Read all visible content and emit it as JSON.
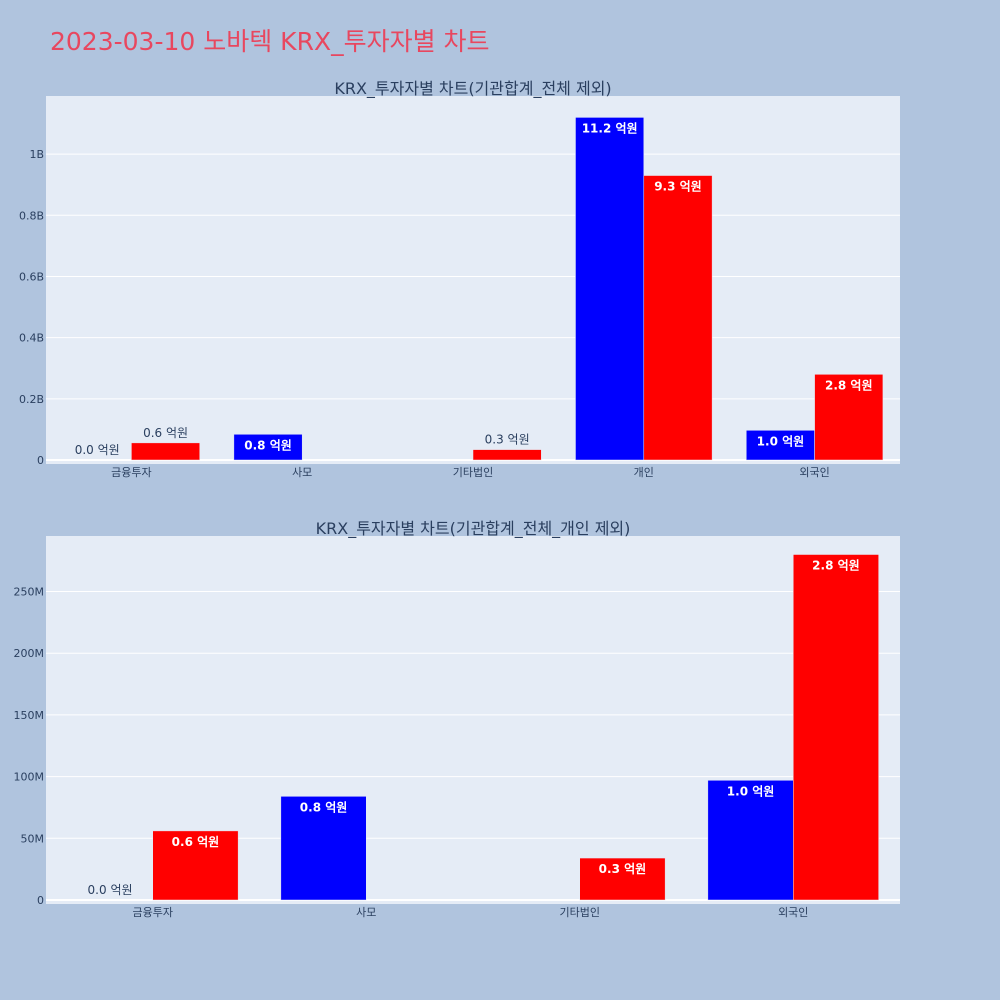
{
  "page": {
    "title": "2023-03-10 노바텍 KRX_투자자별 차트"
  },
  "chart_data": [
    {
      "type": "bar",
      "title": "KRX_투자자별 차트(기관합계_전체 제외)",
      "categories": [
        "금융투자",
        "사모",
        "기타법인",
        "개인",
        "외국인"
      ],
      "ylim": [
        0,
        1190000000
      ],
      "yticks": [
        0,
        200000000,
        400000000,
        600000000,
        800000000,
        1000000000
      ],
      "ytick_labels": [
        "0",
        "0.2B",
        "0.4B",
        "0.6B",
        "0.8B",
        "1B"
      ],
      "grid": true,
      "series": [
        {
          "color": "#0000ff",
          "values": [
            0,
            84000000,
            null,
            1120000000,
            97000000
          ],
          "labels": [
            "0.0 억원",
            "0.8 억원",
            "",
            "11.2 억원",
            "1.0 억원"
          ]
        },
        {
          "color": "#ff0000",
          "values": [
            56000000,
            null,
            34000000,
            930000000,
            280000000
          ],
          "labels": [
            "0.6 억원",
            "",
            "0.3 억원",
            "9.3 억원",
            "2.8 억원"
          ]
        }
      ]
    },
    {
      "type": "bar",
      "title": "KRX_투자자별 차트(기관합계_전체_개인 제외)",
      "categories": [
        "금융투자",
        "사모",
        "기타법인",
        "외국인"
      ],
      "ylim": [
        0,
        295000000
      ],
      "yticks": [
        0,
        50000000,
        100000000,
        150000000,
        200000000,
        250000000
      ],
      "ytick_labels": [
        "0",
        "50M",
        "100M",
        "150M",
        "200M",
        "250M"
      ],
      "grid": true,
      "series": [
        {
          "color": "#0000ff",
          "values": [
            0,
            84000000,
            null,
            97000000
          ],
          "labels": [
            "0.0 억원",
            "0.8 억원",
            "",
            "1.0 억원"
          ]
        },
        {
          "color": "#ff0000",
          "values": [
            56000000,
            null,
            34000000,
            280000000
          ],
          "labels": [
            "0.6 억원",
            "",
            "0.3 억원",
            "2.8 억원"
          ]
        }
      ]
    }
  ]
}
